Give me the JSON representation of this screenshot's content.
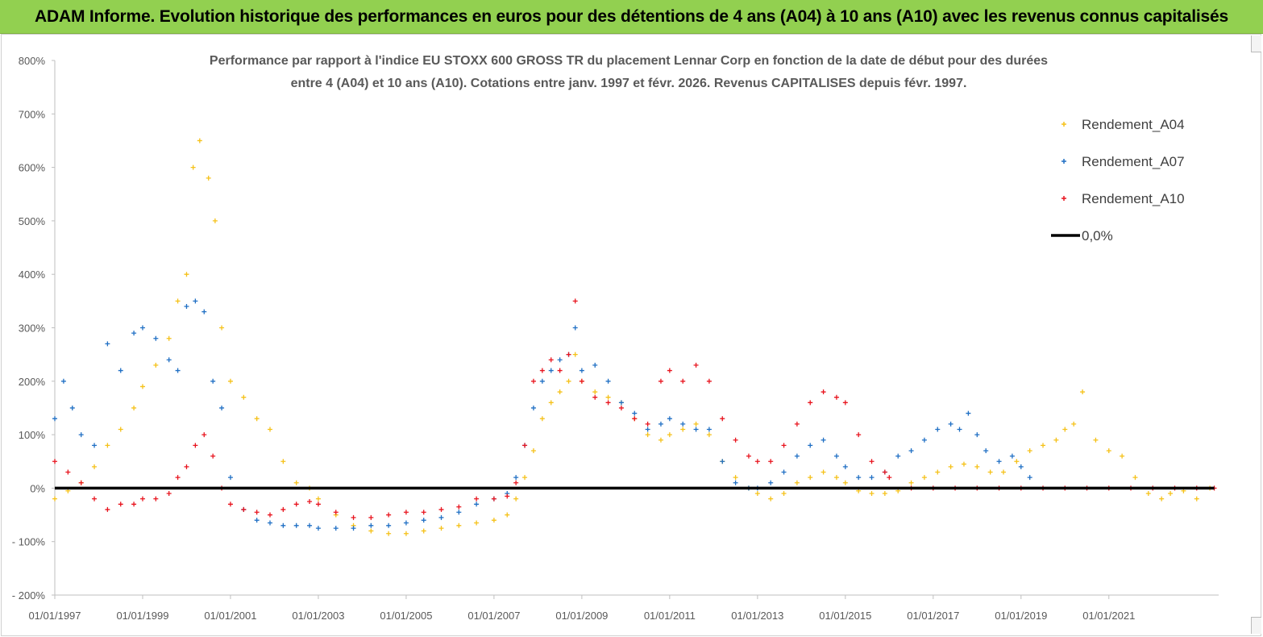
{
  "banner": {
    "title": "ADAM Informe. Evolution historique des performances en euros pour des détentions de 4 ans (A04) à 10 ans (A10) avec les revenus connus capitalisés"
  },
  "chart_data": {
    "type": "scatter",
    "title_line1": "Performance par rapport à l'indice EU STOXX 600 GROSS TR  du placement Lennar Corp en fonction de la date de début pour des durées",
    "title_line2": "entre 4 (A04) et 10 ans (A10). Cotations entre janv. 1997 et févr. 2026. Revenus CAPITALISES depuis févr. 1997.",
    "xlabel": "",
    "ylabel": "",
    "xlim": [
      1997.0,
      2023.5
    ],
    "ylim": [
      -200,
      800
    ],
    "y_ticks": [
      -200,
      -100,
      0,
      100,
      200,
      300,
      400,
      500,
      600,
      700,
      800
    ],
    "y_tick_labels": [
      "- 200%",
      "- 100%",
      "0%",
      "100%",
      "200%",
      "300%",
      "400%",
      "500%",
      "600%",
      "700%",
      "800%"
    ],
    "x_ticks": [
      1997,
      1999,
      2001,
      2003,
      2005,
      2007,
      2009,
      2011,
      2013,
      2015,
      2017,
      2019,
      2021
    ],
    "x_tick_labels": [
      "01/01/1997",
      "01/01/1999",
      "01/01/2001",
      "01/01/2003",
      "01/01/2005",
      "01/01/2007",
      "01/01/2009",
      "01/01/2011",
      "01/01/2013",
      "01/01/2015",
      "01/01/2017",
      "01/01/2019",
      "01/01/2021"
    ],
    "legend_position": "top-right",
    "series": [
      {
        "name": "Rendement_A04",
        "color": "#f5c118",
        "marker": "plus",
        "x": [
          1997.0,
          1997.3,
          1997.6,
          1997.9,
          1998.2,
          1998.5,
          1998.8,
          1999.0,
          1999.3,
          1999.6,
          1999.8,
          2000.0,
          2000.15,
          2000.3,
          2000.5,
          2000.65,
          2000.8,
          2001.0,
          2001.3,
          2001.6,
          2001.9,
          2002.2,
          2002.5,
          2002.8,
          2003.0,
          2003.4,
          2003.8,
          2004.2,
          2004.6,
          2005.0,
          2005.4,
          2005.8,
          2006.2,
          2006.6,
          2007.0,
          2007.3,
          2007.5,
          2007.7,
          2007.9,
          2008.1,
          2008.3,
          2008.5,
          2008.7,
          2008.85,
          2009.0,
          2009.3,
          2009.6,
          2009.9,
          2010.2,
          2010.5,
          2010.8,
          2011.0,
          2011.3,
          2011.6,
          2011.9,
          2012.2,
          2012.5,
          2012.8,
          2013.0,
          2013.3,
          2013.6,
          2013.9,
          2014.2,
          2014.5,
          2014.8,
          2015.0,
          2015.3,
          2015.6,
          2015.9,
          2016.2,
          2016.5,
          2016.8,
          2017.1,
          2017.4,
          2017.7,
          2018.0,
          2018.3,
          2018.6,
          2018.9,
          2019.2,
          2019.5,
          2019.8,
          2020.0,
          2020.2,
          2020.4,
          2020.7,
          2021.0,
          2021.3,
          2021.6,
          2021.9,
          2022.2,
          2022.4,
          2022.7,
          2023.0,
          2023.3
        ],
        "y": [
          -20,
          -5,
          10,
          40,
          80,
          110,
          150,
          190,
          230,
          280,
          350,
          400,
          600,
          650,
          580,
          500,
          300,
          200,
          170,
          130,
          110,
          50,
          10,
          0,
          -20,
          -50,
          -70,
          -80,
          -85,
          -85,
          -80,
          -75,
          -70,
          -65,
          -60,
          -50,
          -20,
          20,
          70,
          130,
          160,
          180,
          200,
          250,
          200,
          180,
          170,
          160,
          130,
          100,
          90,
          100,
          110,
          120,
          100,
          50,
          20,
          0,
          -10,
          -20,
          -10,
          10,
          20,
          30,
          20,
          10,
          -5,
          -10,
          -10,
          -5,
          10,
          20,
          30,
          40,
          45,
          40,
          30,
          30,
          50,
          70,
          80,
          90,
          110,
          120,
          180,
          90,
          70,
          60,
          20,
          -10,
          -20,
          -10,
          -5,
          -20,
          0
        ]
      },
      {
        "name": "Rendement_A07",
        "color": "#1f6fc4",
        "marker": "plus",
        "x": [
          1997.0,
          1997.2,
          1997.4,
          1997.6,
          1997.9,
          1998.2,
          1998.5,
          1998.8,
          1999.0,
          1999.3,
          1999.6,
          1999.8,
          2000.0,
          2000.2,
          2000.4,
          2000.6,
          2000.8,
          2001.0,
          2001.3,
          2001.6,
          2001.9,
          2002.2,
          2002.5,
          2002.8,
          2003.0,
          2003.4,
          2003.8,
          2004.2,
          2004.6,
          2005.0,
          2005.4,
          2005.8,
          2006.2,
          2006.6,
          2007.0,
          2007.3,
          2007.5,
          2007.7,
          2007.9,
          2008.1,
          2008.3,
          2008.5,
          2008.7,
          2008.85,
          2009.0,
          2009.3,
          2009.6,
          2009.9,
          2010.2,
          2010.5,
          2010.8,
          2011.0,
          2011.3,
          2011.6,
          2011.9,
          2012.2,
          2012.5,
          2012.8,
          2013.0,
          2013.3,
          2013.6,
          2013.9,
          2014.2,
          2014.5,
          2014.8,
          2015.0,
          2015.3,
          2015.6,
          2015.9,
          2016.2,
          2016.5,
          2016.8,
          2017.1,
          2017.4,
          2017.6,
          2017.8,
          2018.0,
          2018.2,
          2018.5,
          2018.8,
          2019.0,
          2019.2
        ],
        "y": [
          130,
          200,
          150,
          100,
          80,
          270,
          220,
          290,
          300,
          280,
          240,
          220,
          340,
          350,
          330,
          200,
          150,
          20,
          -40,
          -60,
          -65,
          -70,
          -70,
          -70,
          -75,
          -75,
          -75,
          -70,
          -70,
          -65,
          -60,
          -55,
          -45,
          -30,
          -20,
          -10,
          20,
          80,
          150,
          200,
          220,
          240,
          250,
          300,
          220,
          230,
          200,
          160,
          140,
          110,
          120,
          130,
          120,
          110,
          110,
          50,
          10,
          0,
          0,
          10,
          30,
          60,
          80,
          90,
          60,
          40,
          20,
          20,
          30,
          60,
          70,
          90,
          110,
          120,
          110,
          140,
          100,
          70,
          50,
          60,
          40,
          20
        ]
      },
      {
        "name": "Rendement_A10",
        "color": "#e8141e",
        "marker": "plus",
        "x": [
          1997.0,
          1997.3,
          1997.6,
          1997.9,
          1998.2,
          1998.5,
          1998.8,
          1999.0,
          1999.3,
          1999.6,
          1999.8,
          2000.0,
          2000.2,
          2000.4,
          2000.6,
          2000.8,
          2001.0,
          2001.3,
          2001.6,
          2001.9,
          2002.2,
          2002.5,
          2002.8,
          2003.0,
          2003.4,
          2003.8,
          2004.2,
          2004.6,
          2005.0,
          2005.4,
          2005.8,
          2006.2,
          2006.6,
          2007.0,
          2007.3,
          2007.5,
          2007.7,
          2007.9,
          2008.1,
          2008.3,
          2008.5,
          2008.7,
          2008.85,
          2009.0,
          2009.3,
          2009.6,
          2009.9,
          2010.2,
          2010.5,
          2010.8,
          2011.0,
          2011.3,
          2011.6,
          2011.9,
          2012.2,
          2012.5,
          2012.8,
          2013.0,
          2013.3,
          2013.6,
          2013.9,
          2014.2,
          2014.5,
          2014.8,
          2015.0,
          2015.3,
          2015.6,
          2015.9,
          2016.0,
          2016.5,
          2017.0,
          2017.5,
          2018.0,
          2018.5,
          2019.0,
          2019.5,
          2020.0,
          2020.5,
          2021.0,
          2021.5,
          2022.0,
          2022.5,
          2023.0,
          2023.4
        ],
        "y": [
          50,
          30,
          10,
          -20,
          -40,
          -30,
          -30,
          -20,
          -20,
          -10,
          20,
          40,
          80,
          100,
          60,
          0,
          -30,
          -40,
          -45,
          -50,
          -40,
          -30,
          -25,
          -30,
          -45,
          -55,
          -55,
          -50,
          -45,
          -45,
          -40,
          -35,
          -20,
          -20,
          -15,
          10,
          80,
          200,
          220,
          240,
          220,
          250,
          350,
          200,
          170,
          160,
          150,
          130,
          120,
          200,
          220,
          200,
          230,
          200,
          130,
          90,
          60,
          50,
          50,
          80,
          120,
          160,
          180,
          170,
          160,
          100,
          50,
          30,
          20,
          0,
          0,
          0,
          0,
          0,
          0,
          0,
          0,
          0,
          0,
          0,
          0,
          0,
          0,
          0
        ]
      },
      {
        "name": "0,0%",
        "color": "#000000",
        "marker": "line",
        "x": [
          1997.0,
          2023.4
        ],
        "y": [
          0,
          0
        ]
      }
    ]
  }
}
